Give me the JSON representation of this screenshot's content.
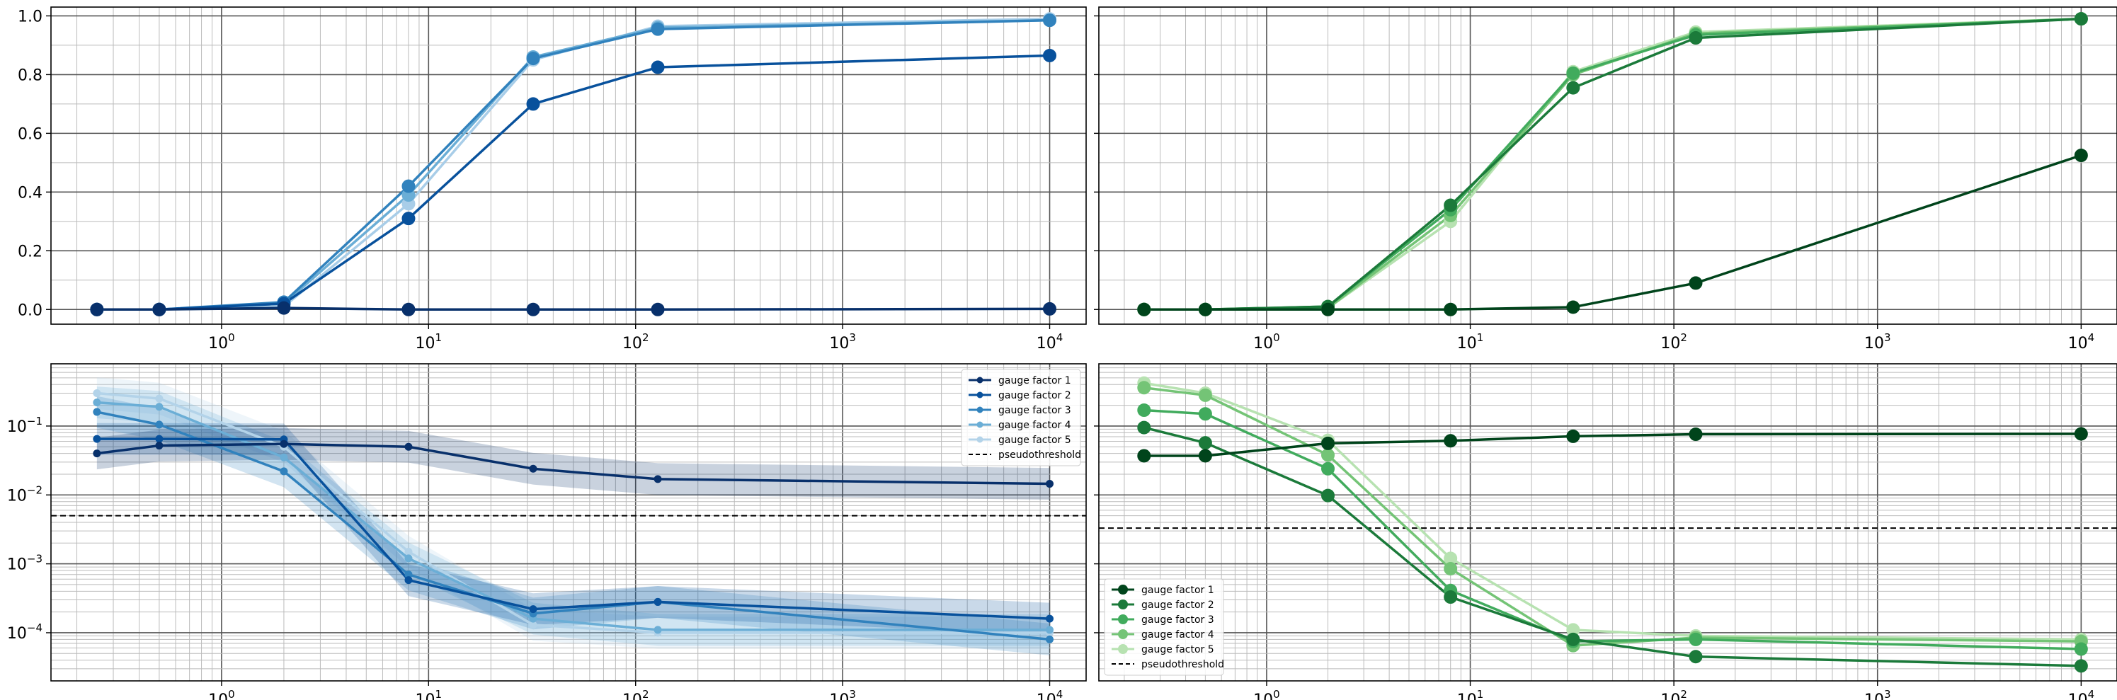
{
  "figure": {
    "background": "#ffffff",
    "grid_major_color": "#555555",
    "grid_minor_color": "#bbbbbb",
    "pseudothreshold_color": "#000000"
  },
  "chart_data": [
    {
      "id": "top-left",
      "type": "line",
      "xscale": "log",
      "yscale": "linear",
      "xlim": [
        0.15,
        15000
      ],
      "ylim": [
        -0.05,
        1.03
      ],
      "xticks": [
        1,
        10,
        100,
        1000,
        10000
      ],
      "xtick_labels": [
        {
          "base": "10",
          "exp": "0"
        },
        {
          "base": "10",
          "exp": "1"
        },
        {
          "base": "10",
          "exp": "2"
        },
        {
          "base": "10",
          "exp": "3"
        },
        {
          "base": "10",
          "exp": "4"
        }
      ],
      "yticks": [
        0.0,
        0.2,
        0.4,
        0.6,
        0.8,
        1.0
      ],
      "ytick_labels": [
        "0.0",
        "0.2",
        "0.4",
        "0.6",
        "0.8",
        "1.0"
      ],
      "grid": true,
      "legend": null,
      "marker_size": 9,
      "series": [
        {
          "color": "#08306b",
          "x": [
            0.25,
            0.5,
            2,
            8,
            32,
            128,
            10000
          ],
          "y": [
            0,
            0,
            0.005,
            0.0,
            0.0,
            0.0,
            0.002
          ]
        },
        {
          "color": "#08519c",
          "x": [
            0.25,
            0.5,
            2,
            8,
            32,
            128,
            10000
          ],
          "y": [
            0,
            0,
            0.02,
            0.31,
            0.7,
            0.825,
            0.865
          ]
        },
        {
          "color": "#3182bd",
          "x": [
            0.25,
            0.5,
            2,
            8,
            32,
            128,
            10000
          ],
          "y": [
            0,
            0,
            0.025,
            0.42,
            0.855,
            0.955,
            0.985
          ]
        },
        {
          "color": "#6baed6",
          "x": [
            0.25,
            0.5,
            2,
            8,
            32,
            128,
            10000
          ],
          "y": [
            0,
            0,
            0.02,
            0.39,
            0.86,
            0.96,
            0.985
          ]
        },
        {
          "color": "#a8cde8",
          "x": [
            0.25,
            0.5,
            2,
            8,
            32,
            128,
            10000
          ],
          "y": [
            0,
            0,
            0.01,
            0.36,
            0.85,
            0.965,
            0.99
          ]
        }
      ]
    },
    {
      "id": "top-right",
      "type": "line",
      "xscale": "log",
      "yscale": "linear",
      "xlim": [
        0.15,
        15000
      ],
      "ylim": [
        -0.05,
        1.03
      ],
      "xticks": [
        1,
        10,
        100,
        1000,
        10000
      ],
      "xtick_labels": [
        {
          "base": "10",
          "exp": "0"
        },
        {
          "base": "10",
          "exp": "1"
        },
        {
          "base": "10",
          "exp": "2"
        },
        {
          "base": "10",
          "exp": "3"
        },
        {
          "base": "10",
          "exp": "4"
        }
      ],
      "yticks": [
        0.0,
        0.2,
        0.4,
        0.6,
        0.8,
        1.0
      ],
      "ytick_labels": [],
      "grid": true,
      "legend": null,
      "marker_size": 9,
      "series": [
        {
          "color": "#00441b",
          "x": [
            0.25,
            0.5,
            2,
            8,
            32,
            128,
            10000
          ],
          "y": [
            0,
            0,
            0.0,
            0.0,
            0.008,
            0.09,
            0.525
          ]
        },
        {
          "color": "#1b7a3a",
          "x": [
            0.25,
            0.5,
            2,
            8,
            32,
            128,
            10000
          ],
          "y": [
            0,
            0,
            0.01,
            0.355,
            0.755,
            0.925,
            0.99
          ]
        },
        {
          "color": "#41ab5d",
          "x": [
            0.25,
            0.5,
            2,
            8,
            32,
            128,
            10000
          ],
          "y": [
            0,
            0,
            0.01,
            0.34,
            0.805,
            0.935,
            0.99
          ]
        },
        {
          "color": "#74c476",
          "x": [
            0.25,
            0.5,
            2,
            8,
            32,
            128,
            10000
          ],
          "y": [
            0,
            0,
            0.005,
            0.32,
            0.8,
            0.94,
            0.99
          ]
        },
        {
          "color": "#b7e2b1",
          "x": [
            0.25,
            0.5,
            2,
            8,
            32,
            128,
            10000
          ],
          "y": [
            0,
            0,
            0.005,
            0.3,
            0.81,
            0.945,
            0.99
          ]
        }
      ]
    },
    {
      "id": "bottom-left",
      "type": "line",
      "xscale": "log",
      "yscale": "log",
      "xlim": [
        0.15,
        15000
      ],
      "ylim": [
        2e-05,
        0.8
      ],
      "xticks": [
        1,
        10,
        100,
        1000,
        10000
      ],
      "xtick_labels": [
        {
          "base": "10",
          "exp": "0"
        },
        {
          "base": "10",
          "exp": "1"
        },
        {
          "base": "10",
          "exp": "2"
        },
        {
          "base": "10",
          "exp": "3"
        },
        {
          "base": "10",
          "exp": "4"
        }
      ],
      "yticks": [
        0.0001,
        0.001,
        0.01,
        0.1
      ],
      "ytick_labels": [
        {
          "base": "10",
          "exp": "−4"
        },
        {
          "base": "10",
          "exp": "−3"
        },
        {
          "base": "10",
          "exp": "−2"
        },
        {
          "base": "10",
          "exp": "−1"
        }
      ],
      "grid": true,
      "legend": "top-right",
      "marker_size": 5,
      "bands": true,
      "pseudothreshold": 0.005,
      "pseudothreshold_label": "pseudothreshold",
      "series": [
        {
          "name": "gauge factor 1",
          "color": "#08306b",
          "x": [
            0.25,
            0.5,
            2,
            8,
            32,
            128,
            10000
          ],
          "y": [
            0.04,
            0.052,
            0.055,
            0.05,
            0.024,
            0.017,
            0.0145
          ]
        },
        {
          "name": "gauge factor 2",
          "color": "#08519c",
          "x": [
            0.25,
            0.5,
            2,
            8,
            32,
            128,
            10000
          ],
          "y": [
            0.065,
            0.065,
            0.064,
            0.00058,
            0.00022,
            0.00028,
            0.00016
          ]
        },
        {
          "name": "gauge factor 3",
          "color": "#3182bd",
          "x": [
            0.25,
            0.5,
            2,
            8,
            32,
            128,
            10000
          ],
          "y": [
            0.16,
            0.105,
            0.022,
            0.0007,
            0.00019,
            0.00028,
            8e-05
          ]
        },
        {
          "name": "gauge factor 4",
          "color": "#6baed6",
          "x": [
            0.25,
            0.5,
            2,
            8,
            32,
            128,
            10000
          ],
          "y": [
            0.22,
            0.19,
            0.035,
            0.0012,
            0.00016,
            0.00011,
            0.00011
          ]
        },
        {
          "name": "gauge factor 5",
          "color": "#b3d3e9",
          "x": [
            0.25,
            0.5,
            2,
            8,
            32,
            128,
            10000
          ],
          "y": [
            0.3,
            0.25,
            0.05,
            0.0015,
            0.00013,
            0.0001,
            0.0001
          ]
        }
      ]
    },
    {
      "id": "bottom-right",
      "type": "line",
      "xscale": "log",
      "yscale": "log",
      "xlim": [
        0.15,
        15000
      ],
      "ylim": [
        2e-05,
        0.8
      ],
      "xticks": [
        1,
        10,
        100,
        1000,
        10000
      ],
      "xtick_labels": [
        {
          "base": "10",
          "exp": "0"
        },
        {
          "base": "10",
          "exp": "1"
        },
        {
          "base": "10",
          "exp": "2"
        },
        {
          "base": "10",
          "exp": "3"
        },
        {
          "base": "10",
          "exp": "4"
        }
      ],
      "yticks": [
        0.0001,
        0.001,
        0.01,
        0.1
      ],
      "ytick_labels": [],
      "grid": true,
      "legend": "bottom-left",
      "marker_size": 9,
      "bands": false,
      "pseudothreshold": 0.0033,
      "pseudothreshold_label": "pseudothreshold",
      "series": [
        {
          "name": "gauge factor 1",
          "color": "#00441b",
          "x": [
            0.25,
            0.5,
            2,
            8,
            32,
            128,
            10000
          ],
          "y": [
            0.037,
            0.037,
            0.056,
            0.061,
            0.071,
            0.076,
            0.077
          ]
        },
        {
          "name": "gauge factor 2",
          "color": "#1b7a3a",
          "x": [
            0.25,
            0.5,
            2,
            8,
            32,
            128,
            10000
          ],
          "y": [
            0.095,
            0.057,
            0.0098,
            0.00033,
            8e-05,
            4.5e-05,
            3.3e-05
          ]
        },
        {
          "name": "gauge factor 3",
          "color": "#41ab5d",
          "x": [
            0.25,
            0.5,
            2,
            8,
            32,
            128,
            10000
          ],
          "y": [
            0.17,
            0.15,
            0.024,
            0.00041,
            7.5e-05,
            8e-05,
            5.8e-05
          ]
        },
        {
          "name": "gauge factor 4",
          "color": "#74c476",
          "x": [
            0.25,
            0.5,
            2,
            8,
            32,
            128,
            10000
          ],
          "y": [
            0.36,
            0.28,
            0.038,
            0.00085,
            6.5e-05,
            8.5e-05,
            7.5e-05
          ]
        },
        {
          "name": "gauge factor 5",
          "color": "#b7e2b1",
          "x": [
            0.25,
            0.5,
            2,
            8,
            32,
            128,
            10000
          ],
          "y": [
            0.42,
            0.3,
            0.062,
            0.0012,
            0.00011,
            9e-05,
            8e-05
          ]
        }
      ]
    }
  ]
}
